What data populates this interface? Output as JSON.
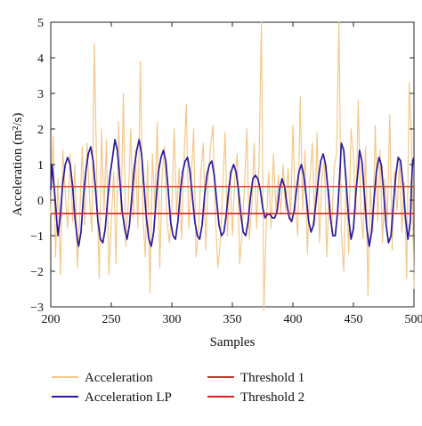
{
  "chart_data": {
    "type": "line",
    "title": "",
    "xlabel": "Samples",
    "ylabel": "Acceleration (m²/s)",
    "xlim": [
      200,
      500
    ],
    "ylim": [
      -3,
      5
    ],
    "xticks": [
      200,
      250,
      300,
      350,
      400,
      450,
      500
    ],
    "yticks": [
      -3,
      -2,
      -1,
      0,
      1,
      2,
      3,
      4,
      5
    ],
    "xtick_labels": [
      "200",
      "250",
      "300",
      "350",
      "400",
      "450",
      "500"
    ],
    "ytick_labels": [
      "−3",
      "−2",
      "−1",
      "0",
      "1",
      "2",
      "3",
      "4",
      "5"
    ],
    "grid": false,
    "legend_position": "bottom",
    "series": [
      {
        "name": "Acceleration",
        "color": "#f5c78a",
        "points": [
          [
            200,
            -0.4
          ],
          [
            202,
            1.8
          ],
          [
            204,
            -1.6
          ],
          [
            206,
            0.6
          ],
          [
            208,
            -2.1
          ],
          [
            210,
            1.4
          ],
          [
            212,
            0.2
          ],
          [
            214,
            -0.8
          ],
          [
            216,
            1.3
          ],
          [
            218,
            -0.6
          ],
          [
            220,
            1.0
          ],
          [
            222,
            -1.9
          ],
          [
            224,
            -0.4
          ],
          [
            226,
            1.5
          ],
          [
            228,
            -0.7
          ],
          [
            230,
            1.6
          ],
          [
            232,
            0.1
          ],
          [
            234,
            -0.9
          ],
          [
            236,
            4.4
          ],
          [
            238,
            0.6
          ],
          [
            240,
            -2.2
          ],
          [
            242,
            2.0
          ],
          [
            244,
            -0.3
          ],
          [
            246,
            1.7
          ],
          [
            248,
            -2.1
          ],
          [
            250,
            -0.6
          ],
          [
            252,
            0.8
          ],
          [
            254,
            -1.8
          ],
          [
            256,
            2.2
          ],
          [
            258,
            -0.4
          ],
          [
            260,
            3.0
          ],
          [
            262,
            -1.3
          ],
          [
            264,
            -0.1
          ],
          [
            266,
            2.0
          ],
          [
            268,
            -0.5
          ],
          [
            270,
            1.4
          ],
          [
            272,
            -0.8
          ],
          [
            274,
            3.9
          ],
          [
            276,
            -0.3
          ],
          [
            278,
            -1.6
          ],
          [
            280,
            1.1
          ],
          [
            282,
            -2.6
          ],
          [
            284,
            1.3
          ],
          [
            286,
            -0.2
          ],
          [
            288,
            2.2
          ],
          [
            290,
            -1.9
          ],
          [
            292,
            0.7
          ],
          [
            294,
            1.5
          ],
          [
            296,
            -0.6
          ],
          [
            298,
            -1.2
          ],
          [
            300,
            -0.2
          ],
          [
            302,
            2.0
          ],
          [
            304,
            -0.4
          ],
          [
            306,
            0.9
          ],
          [
            308,
            -1.1
          ],
          [
            310,
            1.1
          ],
          [
            312,
            2.7
          ],
          [
            314,
            -0.8
          ],
          [
            316,
            0.6
          ],
          [
            318,
            2.0
          ],
          [
            320,
            -1.6
          ],
          [
            322,
            -0.9
          ],
          [
            324,
            0.8
          ],
          [
            326,
            1.6
          ],
          [
            328,
            -1.4
          ],
          [
            330,
            0.6
          ],
          [
            332,
            1.5
          ],
          [
            334,
            2.1
          ],
          [
            336,
            -0.5
          ],
          [
            338,
            -1.9
          ],
          [
            340,
            -1.2
          ],
          [
            342,
            0.3
          ],
          [
            344,
            1.9
          ],
          [
            346,
            -1.0
          ],
          [
            348,
            0.8
          ],
          [
            350,
            -1.0
          ],
          [
            352,
            0.6
          ],
          [
            354,
            1.3
          ],
          [
            356,
            -1.8
          ],
          [
            358,
            -0.9
          ],
          [
            360,
            0.4
          ],
          [
            362,
            2.0
          ],
          [
            364,
            -1.1
          ],
          [
            366,
            -0.2
          ],
          [
            368,
            1.6
          ],
          [
            370,
            -0.8
          ],
          [
            372,
            1.0
          ],
          [
            374,
            5.0
          ],
          [
            376,
            -3.1
          ],
          [
            378,
            -0.7
          ],
          [
            380,
            0.8
          ],
          [
            382,
            -0.8
          ],
          [
            384,
            1.3
          ],
          [
            386,
            -0.3
          ],
          [
            388,
            0.7
          ],
          [
            390,
            -0.4
          ],
          [
            392,
            1.0
          ],
          [
            394,
            -0.3
          ],
          [
            396,
            0.9
          ],
          [
            398,
            -0.6
          ],
          [
            400,
            2.1
          ],
          [
            402,
            -0.2
          ],
          [
            404,
            -1.0
          ],
          [
            406,
            2.9
          ],
          [
            408,
            -0.3
          ],
          [
            410,
            1.4
          ],
          [
            412,
            -1.5
          ],
          [
            414,
            0.5
          ],
          [
            416,
            1.6
          ],
          [
            418,
            -0.7
          ],
          [
            420,
            1.9
          ],
          [
            422,
            -1.2
          ],
          [
            424,
            0.7
          ],
          [
            426,
            1.1
          ],
          [
            428,
            -1.6
          ],
          [
            430,
            0.3
          ],
          [
            432,
            -0.9
          ],
          [
            434,
            0.9
          ],
          [
            436,
            1.3
          ],
          [
            438,
            5.0
          ],
          [
            440,
            -0.9
          ],
          [
            442,
            -2.0
          ],
          [
            444,
            0.7
          ],
          [
            446,
            -1.5
          ],
          [
            448,
            2.0
          ],
          [
            450,
            1.3
          ],
          [
            452,
            -0.4
          ],
          [
            454,
            2.8
          ],
          [
            456,
            -0.3
          ],
          [
            458,
            -1.1
          ],
          [
            460,
            1.5
          ],
          [
            462,
            -2.7
          ],
          [
            464,
            0.4
          ],
          [
            466,
            -0.9
          ],
          [
            468,
            2.1
          ],
          [
            470,
            -0.6
          ],
          [
            472,
            1.4
          ],
          [
            474,
            -1.2
          ],
          [
            476,
            0.6
          ],
          [
            478,
            -0.6
          ],
          [
            480,
            2.4
          ],
          [
            482,
            -1.4
          ],
          [
            484,
            0.8
          ],
          [
            486,
            -0.3
          ],
          [
            488,
            1.1
          ],
          [
            490,
            -0.9
          ],
          [
            492,
            0.5
          ],
          [
            494,
            -2.2
          ],
          [
            496,
            3.3
          ],
          [
            498,
            1.6
          ],
          [
            500,
            -2.5
          ]
        ]
      },
      {
        "name": "Acceleration LP",
        "color": "#2a1aa0",
        "points": [
          [
            200,
            0.3
          ],
          [
            201,
            1.0
          ],
          [
            203,
            0.3
          ],
          [
            205,
            -0.6
          ],
          [
            206,
            -1.0
          ],
          [
            208,
            -0.4
          ],
          [
            210,
            0.5
          ],
          [
            212,
            1.0
          ],
          [
            214,
            1.2
          ],
          [
            216,
            1.0
          ],
          [
            218,
            0.4
          ],
          [
            220,
            -0.5
          ],
          [
            222,
            -1.1
          ],
          [
            223,
            -1.3
          ],
          [
            225,
            -0.9
          ],
          [
            227,
            0.1
          ],
          [
            229,
            0.8
          ],
          [
            231,
            1.3
          ],
          [
            233,
            1.5
          ],
          [
            235,
            1.1
          ],
          [
            237,
            0.3
          ],
          [
            239,
            -0.6
          ],
          [
            241,
            -1.1
          ],
          [
            243,
            -1.2
          ],
          [
            245,
            -0.8
          ],
          [
            247,
            0.0
          ],
          [
            249,
            0.7
          ],
          [
            251,
            1.2
          ],
          [
            253,
            1.7
          ],
          [
            255,
            1.4
          ],
          [
            257,
            0.6
          ],
          [
            259,
            -0.3
          ],
          [
            261,
            -0.8
          ],
          [
            263,
            -1.1
          ],
          [
            265,
            -0.7
          ],
          [
            267,
            0.1
          ],
          [
            269,
            0.9
          ],
          [
            271,
            1.4
          ],
          [
            273,
            1.7
          ],
          [
            275,
            1.3
          ],
          [
            277,
            0.4
          ],
          [
            279,
            -0.5
          ],
          [
            281,
            -1.1
          ],
          [
            283,
            -1.3
          ],
          [
            285,
            -0.9
          ],
          [
            287,
            0.0
          ],
          [
            289,
            0.8
          ],
          [
            291,
            1.2
          ],
          [
            293,
            1.4
          ],
          [
            295,
            1.1
          ],
          [
            297,
            0.3
          ],
          [
            299,
            -0.6
          ],
          [
            301,
            -1.0
          ],
          [
            303,
            -1.1
          ],
          [
            305,
            -0.6
          ],
          [
            307,
            0.2
          ],
          [
            309,
            0.8
          ],
          [
            311,
            1.1
          ],
          [
            313,
            1.2
          ],
          [
            315,
            0.8
          ],
          [
            317,
            0.1
          ],
          [
            319,
            -0.6
          ],
          [
            321,
            -1.0
          ],
          [
            323,
            -1.1
          ],
          [
            325,
            -0.7
          ],
          [
            327,
            0.1
          ],
          [
            329,
            0.7
          ],
          [
            331,
            1.0
          ],
          [
            333,
            1.1
          ],
          [
            335,
            0.7
          ],
          [
            337,
            0.0
          ],
          [
            339,
            -0.7
          ],
          [
            341,
            -1.0
          ],
          [
            343,
            -0.9
          ],
          [
            345,
            -0.4
          ],
          [
            347,
            0.3
          ],
          [
            349,
            0.8
          ],
          [
            351,
            1.0
          ],
          [
            353,
            0.8
          ],
          [
            355,
            0.3
          ],
          [
            357,
            -0.4
          ],
          [
            359,
            -0.9
          ],
          [
            361,
            -1.0
          ],
          [
            363,
            -0.6
          ],
          [
            365,
            0.1
          ],
          [
            367,
            0.6
          ],
          [
            369,
            0.7
          ],
          [
            371,
            0.6
          ],
          [
            373,
            0.3
          ],
          [
            375,
            -0.2
          ],
          [
            377,
            -0.5
          ],
          [
            379,
            -0.4
          ],
          [
            381,
            -0.4
          ],
          [
            383,
            -0.5
          ],
          [
            385,
            -0.5
          ],
          [
            387,
            -0.3
          ],
          [
            389,
            0.3
          ],
          [
            391,
            0.6
          ],
          [
            393,
            0.4
          ],
          [
            395,
            -0.1
          ],
          [
            397,
            -0.5
          ],
          [
            399,
            -0.6
          ],
          [
            401,
            -0.3
          ],
          [
            403,
            0.3
          ],
          [
            405,
            0.8
          ],
          [
            407,
            1.0
          ],
          [
            409,
            0.7
          ],
          [
            411,
            0.1
          ],
          [
            413,
            -0.6
          ],
          [
            415,
            -0.9
          ],
          [
            417,
            -0.7
          ],
          [
            419,
            -0.1
          ],
          [
            421,
            0.6
          ],
          [
            423,
            1.1
          ],
          [
            425,
            1.3
          ],
          [
            427,
            1.0
          ],
          [
            429,
            0.3
          ],
          [
            431,
            -0.5
          ],
          [
            433,
            -1.0
          ],
          [
            435,
            -1.0
          ],
          [
            437,
            -0.3
          ],
          [
            439,
            0.9
          ],
          [
            440,
            1.6
          ],
          [
            442,
            1.4
          ],
          [
            444,
            0.5
          ],
          [
            446,
            -0.5
          ],
          [
            448,
            -1.1
          ],
          [
            450,
            -0.8
          ],
          [
            452,
            0.2
          ],
          [
            454,
            0.9
          ],
          [
            455,
            1.4
          ],
          [
            457,
            1.1
          ],
          [
            459,
            0.2
          ],
          [
            461,
            -0.8
          ],
          [
            463,
            -1.3
          ],
          [
            465,
            -0.9
          ],
          [
            467,
            0.0
          ],
          [
            469,
            0.8
          ],
          [
            471,
            1.2
          ],
          [
            473,
            1.0
          ],
          [
            475,
            0.2
          ],
          [
            477,
            -0.7
          ],
          [
            479,
            -1.2
          ],
          [
            481,
            -1.0
          ],
          [
            483,
            -0.1
          ],
          [
            485,
            0.7
          ],
          [
            487,
            1.2
          ],
          [
            489,
            1.1
          ],
          [
            491,
            0.4
          ],
          [
            493,
            -0.5
          ],
          [
            495,
            -1.1
          ],
          [
            497,
            -0.6
          ],
          [
            498,
            0.5
          ],
          [
            499,
            1.1
          ],
          [
            500,
            1.2
          ]
        ]
      },
      {
        "name": "Threshold 1",
        "color": "#c0392b",
        "points": [
          [
            200,
            0.38
          ],
          [
            500,
            0.38
          ]
        ]
      },
      {
        "name": "Threshold 2",
        "color": "#d92323",
        "points": [
          [
            200,
            -0.38
          ],
          [
            500,
            -0.38
          ]
        ]
      }
    ]
  }
}
